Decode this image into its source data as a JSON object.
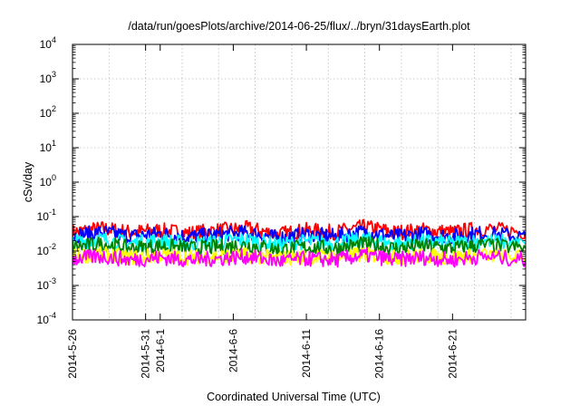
{
  "chart_data": {
    "type": "line",
    "title": "/data/run/goesPlots/archive/2014-06-25/flux/../bryn/31daysEarth.plot",
    "xlabel": "Coordinated Universal Time (UTC)",
    "ylabel": "cSv/day",
    "x_range": [
      "2014-05-26",
      "2014-06-26"
    ],
    "ylim": [
      0.0001,
      10000
    ],
    "yscale": "log",
    "grid": true,
    "x_ticks": [
      {
        "date": "2014-05-26",
        "label": "2014-5-26"
      },
      {
        "date": "2014-05-31",
        "label": "2014-5-31"
      },
      {
        "date": "2014-06-01",
        "label": "2014-6-1"
      },
      {
        "date": "2014-06-06",
        "label": "2014-6-6"
      },
      {
        "date": "2014-06-11",
        "label": "2014-6-11"
      },
      {
        "date": "2014-06-16",
        "label": "2014-6-16"
      },
      {
        "date": "2014-06-21",
        "label": "2014-6-21"
      }
    ],
    "y_ticks": [
      {
        "value": 0.0001,
        "base": "10",
        "exp": "-4"
      },
      {
        "value": 0.001,
        "base": "10",
        "exp": "-3"
      },
      {
        "value": 0.01,
        "base": "10",
        "exp": "-2"
      },
      {
        "value": 0.1,
        "base": "10",
        "exp": "-1"
      },
      {
        "value": 1,
        "base": "10",
        "exp": "0"
      },
      {
        "value": 10,
        "base": "10",
        "exp": "1"
      },
      {
        "value": 100,
        "base": "10",
        "exp": "2"
      },
      {
        "value": 1000,
        "base": "10",
        "exp": "3"
      },
      {
        "value": 10000,
        "base": "10",
        "exp": "4"
      }
    ],
    "series": [
      {
        "color": "#ff0000",
        "x": [
          "2014-05-26",
          "2014-05-28",
          "2014-05-30",
          "2014-06-01",
          "2014-06-03",
          "2014-06-05",
          "2014-06-07",
          "2014-06-09",
          "2014-06-11",
          "2014-06-13",
          "2014-06-15",
          "2014-06-17",
          "2014-06-19",
          "2014-06-21",
          "2014-06-23",
          "2014-06-26"
        ],
        "y": [
          0.035,
          0.045,
          0.035,
          0.04,
          0.033,
          0.04,
          0.045,
          0.03,
          0.04,
          0.035,
          0.05,
          0.035,
          0.04,
          0.035,
          0.045,
          0.035
        ]
      },
      {
        "color": "#0000ff",
        "x": [
          "2014-05-26",
          "2014-05-28",
          "2014-05-30",
          "2014-06-01",
          "2014-06-03",
          "2014-06-05",
          "2014-06-07",
          "2014-06-09",
          "2014-06-11",
          "2014-06-13",
          "2014-06-15",
          "2014-06-17",
          "2014-06-19",
          "2014-06-21",
          "2014-06-23",
          "2014-06-26"
        ],
        "y": [
          0.028,
          0.035,
          0.027,
          0.032,
          0.026,
          0.03,
          0.034,
          0.024,
          0.03,
          0.027,
          0.036,
          0.026,
          0.031,
          0.027,
          0.033,
          0.026
        ]
      },
      {
        "color": "#00ffff",
        "x": [
          "2014-05-26",
          "2014-05-28",
          "2014-05-30",
          "2014-06-01",
          "2014-06-03",
          "2014-06-05",
          "2014-06-07",
          "2014-06-09",
          "2014-06-11",
          "2014-06-13",
          "2014-06-15",
          "2014-06-17",
          "2014-06-19",
          "2014-06-21",
          "2014-06-23",
          "2014-06-26"
        ],
        "y": [
          0.018,
          0.022,
          0.017,
          0.02,
          0.016,
          0.019,
          0.021,
          0.015,
          0.019,
          0.017,
          0.022,
          0.016,
          0.019,
          0.017,
          0.02,
          0.016
        ]
      },
      {
        "color": "#008000",
        "x": [
          "2014-05-26",
          "2014-05-28",
          "2014-05-30",
          "2014-06-01",
          "2014-06-03",
          "2014-06-05",
          "2014-06-07",
          "2014-06-09",
          "2014-06-11",
          "2014-06-13",
          "2014-06-15",
          "2014-06-17",
          "2014-06-19",
          "2014-06-21",
          "2014-06-23",
          "2014-06-26"
        ],
        "y": [
          0.013,
          0.016,
          0.012,
          0.014,
          0.012,
          0.013,
          0.015,
          0.011,
          0.013,
          0.012,
          0.016,
          0.012,
          0.014,
          0.012,
          0.015,
          0.012
        ]
      },
      {
        "color": "#ffff00",
        "x": [
          "2014-05-26",
          "2014-05-28",
          "2014-05-30",
          "2014-06-01",
          "2014-06-03",
          "2014-06-05",
          "2014-06-07",
          "2014-06-09",
          "2014-06-11",
          "2014-06-13",
          "2014-06-15",
          "2014-06-17",
          "2014-06-19",
          "2014-06-21",
          "2014-06-23",
          "2014-06-26"
        ],
        "y": [
          0.007,
          0.008,
          0.0065,
          0.0075,
          0.0065,
          0.007,
          0.0075,
          0.006,
          0.007,
          0.0065,
          0.008,
          0.0065,
          0.0072,
          0.0065,
          0.0075,
          0.0065
        ]
      },
      {
        "color": "#ff00ff",
        "x": [
          "2014-05-26",
          "2014-05-28",
          "2014-05-30",
          "2014-06-01",
          "2014-06-03",
          "2014-06-05",
          "2014-06-07",
          "2014-06-09",
          "2014-06-11",
          "2014-06-13",
          "2014-06-15",
          "2014-06-17",
          "2014-06-19",
          "2014-06-21",
          "2014-06-23",
          "2014-06-26"
        ],
        "y": [
          0.006,
          0.007,
          0.0055,
          0.0065,
          0.0055,
          0.006,
          0.007,
          0.005,
          0.006,
          0.0055,
          0.0075,
          0.0055,
          0.0065,
          0.0055,
          0.007,
          0.0055
        ]
      }
    ]
  }
}
